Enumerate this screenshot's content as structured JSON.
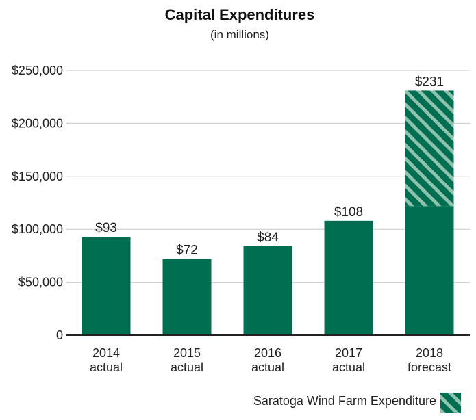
{
  "chart_data": {
    "type": "bar",
    "title": "Capital Expenditures",
    "subtitle": "(in millions)",
    "categories": [
      {
        "year": "2014",
        "note": "actual"
      },
      {
        "year": "2015",
        "note": "actual"
      },
      {
        "year": "2016",
        "note": "actual"
      },
      {
        "year": "2017",
        "note": "actual"
      },
      {
        "year": "2018",
        "note": "forecast"
      }
    ],
    "series": [
      {
        "name": "Capital Expenditures",
        "values": [
          93000,
          72000,
          84000,
          108000,
          122000
        ]
      },
      {
        "name": "Saratoga Wind Farm Expenditure",
        "values": [
          0,
          0,
          0,
          0,
          109000
        ]
      }
    ],
    "data_labels": [
      "$93",
      "$72",
      "$84",
      "$108",
      "$231"
    ],
    "y_ticks": [
      {
        "value": 0,
        "label": "0"
      },
      {
        "value": 50000,
        "label": "$50,000"
      },
      {
        "value": 100000,
        "label": "$100,000"
      },
      {
        "value": 150000,
        "label": "$150,000"
      },
      {
        "value": 200000,
        "label": "$200,000"
      },
      {
        "value": 250000,
        "label": "$250,000"
      }
    ],
    "ylim": [
      0,
      250000
    ],
    "grid": true,
    "legend": {
      "label": "Saratoga Wind Farm Expenditure",
      "position": "bottom-right"
    },
    "colors": {
      "bar": "#006e51",
      "stripe_light": "#8fc2ad",
      "grid": "#c9c9c9",
      "axis": "#222222"
    }
  }
}
